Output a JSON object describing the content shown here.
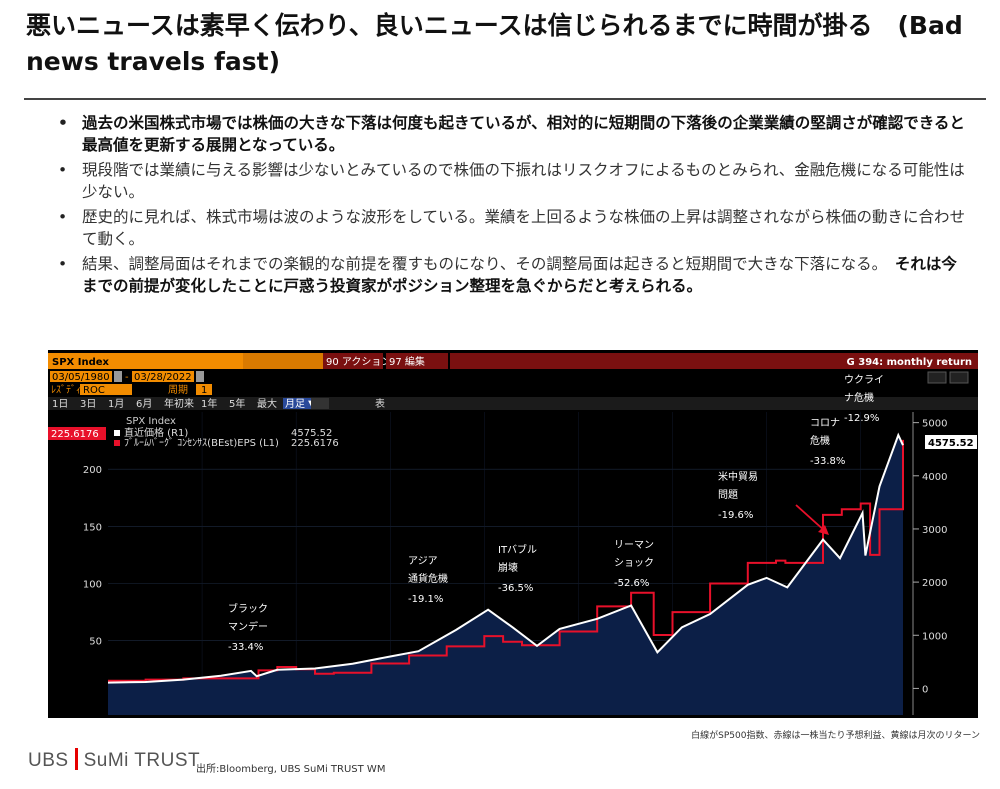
{
  "page": {
    "title": "悪いニュースは素早く伝わり、良いニュースは信じられるまでに時間が掛る　(Bad news travels fast)",
    "bullets": [
      {
        "text": "過去の米国株式市場では株価の大きな下落は何度も起きているが、相対的に短期間の下落後の企業業績の堅調さが確認できると最高値を更新する展開となっている。",
        "bold": true
      },
      {
        "text": "現段階では業績に与える影響は少ないとみているので株価の下振れはリスクオフによるものとみられ、金融危機になる可能性は少ない。",
        "bold": false
      },
      {
        "text": "歴史的に見れば、株式市場は波のような波形をしている。業績を上回るような株価の上昇は調整されながら株価の動きに合わせて動く。",
        "bold": false
      },
      {
        "text": "結果、調整局面はそれまでの楽観的な前提を覆すものになり、その調整局面は起きると短期間で大きな下落になる。",
        "bold_tail": "それは今までの前提が変化したことに戸惑う投資家がポジション整理を急ぐからだと考えられる。",
        "bold": false
      }
    ],
    "note": "白線がSP500指数、赤線は一株当たり予想利益、黄線は月次のリターン",
    "logo_left": "UBS",
    "logo_right": "SuMi TRUST",
    "source": "出所:Bloomberg, UBS SuMi TRUST WM"
  },
  "terminal": {
    "ticker": "SPX Index",
    "menu_items": [
      "90 アクション",
      "97 編集"
    ],
    "header_right": "G 394: monthly return",
    "date_from": "03/05/1980",
    "date_to": "03/28/2022",
    "row2_label1": "ﾚｽﾞﾃﾞｨ",
    "row2_value1": "ROC",
    "row2_label2": "周期",
    "row2_value2": "1",
    "periods": [
      "1日",
      "3日",
      "1月",
      "6月",
      "年初来",
      "1年",
      "5年",
      "最大",
      "月足"
    ],
    "extra_btn": "表",
    "legend_title": "SPX Index",
    "legend_rows": [
      {
        "name": "直近価格 (R1)",
        "value": "4575.52",
        "color": "#ffffff"
      },
      {
        "name": "ﾌﾞﾙｰﾑﾊﾞｰｸﾞ ｺﾝｾﾝｻｽ(BEst)EPS (L1)",
        "value": "225.6176",
        "color": "#e8102a"
      }
    ],
    "left_last_label": "225.6176",
    "right_last_label": "4575.52",
    "colors": {
      "price": "#ffffff",
      "eps": "#e8102a",
      "area": "#0c1f47",
      "header": "#f28c00"
    }
  },
  "chart_data": {
    "type": "line",
    "x_range": [
      1980,
      2022.25
    ],
    "left_axis": {
      "ticks": [
        50,
        100,
        150,
        200
      ],
      "range": [
        -15,
        250
      ]
    },
    "right_axis": {
      "ticks": [
        0,
        1000,
        2000,
        3000,
        4000,
        5000
      ],
      "range": [
        -500,
        5200
      ]
    },
    "series": [
      {
        "name": "直近価格 (R1)",
        "axis": "right",
        "points": [
          [
            1980,
            110
          ],
          [
            1982,
            120
          ],
          [
            1984,
            165
          ],
          [
            1986,
            240
          ],
          [
            1987.6,
            330
          ],
          [
            1987.9,
            230
          ],
          [
            1989,
            350
          ],
          [
            1991,
            375
          ],
          [
            1993,
            465
          ],
          [
            1995,
            600
          ],
          [
            1996.5,
            700
          ],
          [
            1998.5,
            1100
          ],
          [
            2000.2,
            1480
          ],
          [
            2001.5,
            1150
          ],
          [
            2002.8,
            800
          ],
          [
            2004,
            1120
          ],
          [
            2006,
            1310
          ],
          [
            2007.8,
            1560
          ],
          [
            2009.2,
            680
          ],
          [
            2010.5,
            1150
          ],
          [
            2012,
            1400
          ],
          [
            2014,
            1950
          ],
          [
            2015,
            2080
          ],
          [
            2016.1,
            1900
          ],
          [
            2018,
            2800
          ],
          [
            2018.9,
            2450
          ],
          [
            2020.1,
            3300
          ],
          [
            2020.25,
            2500
          ],
          [
            2021,
            3800
          ],
          [
            2022,
            4766
          ],
          [
            2022.25,
            4575
          ]
        ]
      },
      {
        "name": "ﾌﾞﾙｰﾑﾊﾞｰｸﾞ ｺﾝｾﾝｻｽ(BEst)EPS (L1)",
        "axis": "left",
        "points": [
          [
            1980,
            15
          ],
          [
            1982,
            16
          ],
          [
            1984,
            17
          ],
          [
            1986,
            17
          ],
          [
            1988,
            24
          ],
          [
            1989,
            27
          ],
          [
            1990,
            25
          ],
          [
            1991,
            21
          ],
          [
            1992,
            22
          ],
          [
            1994,
            30
          ],
          [
            1996,
            37
          ],
          [
            1998,
            45
          ],
          [
            2000,
            54
          ],
          [
            2001,
            49
          ],
          [
            2002,
            46
          ],
          [
            2004,
            58
          ],
          [
            2006,
            80
          ],
          [
            2007.8,
            92
          ],
          [
            2009,
            55
          ],
          [
            2010,
            75
          ],
          [
            2012,
            100
          ],
          [
            2014,
            118
          ],
          [
            2015.5,
            120
          ],
          [
            2016,
            118
          ],
          [
            2018,
            160
          ],
          [
            2019,
            165
          ],
          [
            2020,
            170
          ],
          [
            2020.5,
            125
          ],
          [
            2021,
            165
          ],
          [
            2022.25,
            225.6
          ]
        ]
      }
    ],
    "annotations": [
      {
        "label": [
          "ブラック",
          "マンデー"
        ],
        "value": "-33.4%",
        "x": 1987.8
      },
      {
        "label": [
          "アジア",
          "通貨危機"
        ],
        "value": "-19.1%",
        "x": 1997.8
      },
      {
        "label": [
          "ITバブル",
          "崩壊"
        ],
        "value": "-36.5%",
        "x": 2001
      },
      {
        "label": [
          "リーマン",
          "ショック"
        ],
        "value": "-52.6%",
        "x": 2008.7
      },
      {
        "label": [
          "米中貿易",
          "問題"
        ],
        "value": "-19.6%",
        "x": 2018.9
      },
      {
        "label": [
          "コロナ",
          "危機"
        ],
        "value": "-33.8%",
        "x": 2020.2
      },
      {
        "label": [
          "ウクライ",
          "ナ危機"
        ],
        "value": "-12.9%",
        "x": 2022.1
      }
    ]
  }
}
